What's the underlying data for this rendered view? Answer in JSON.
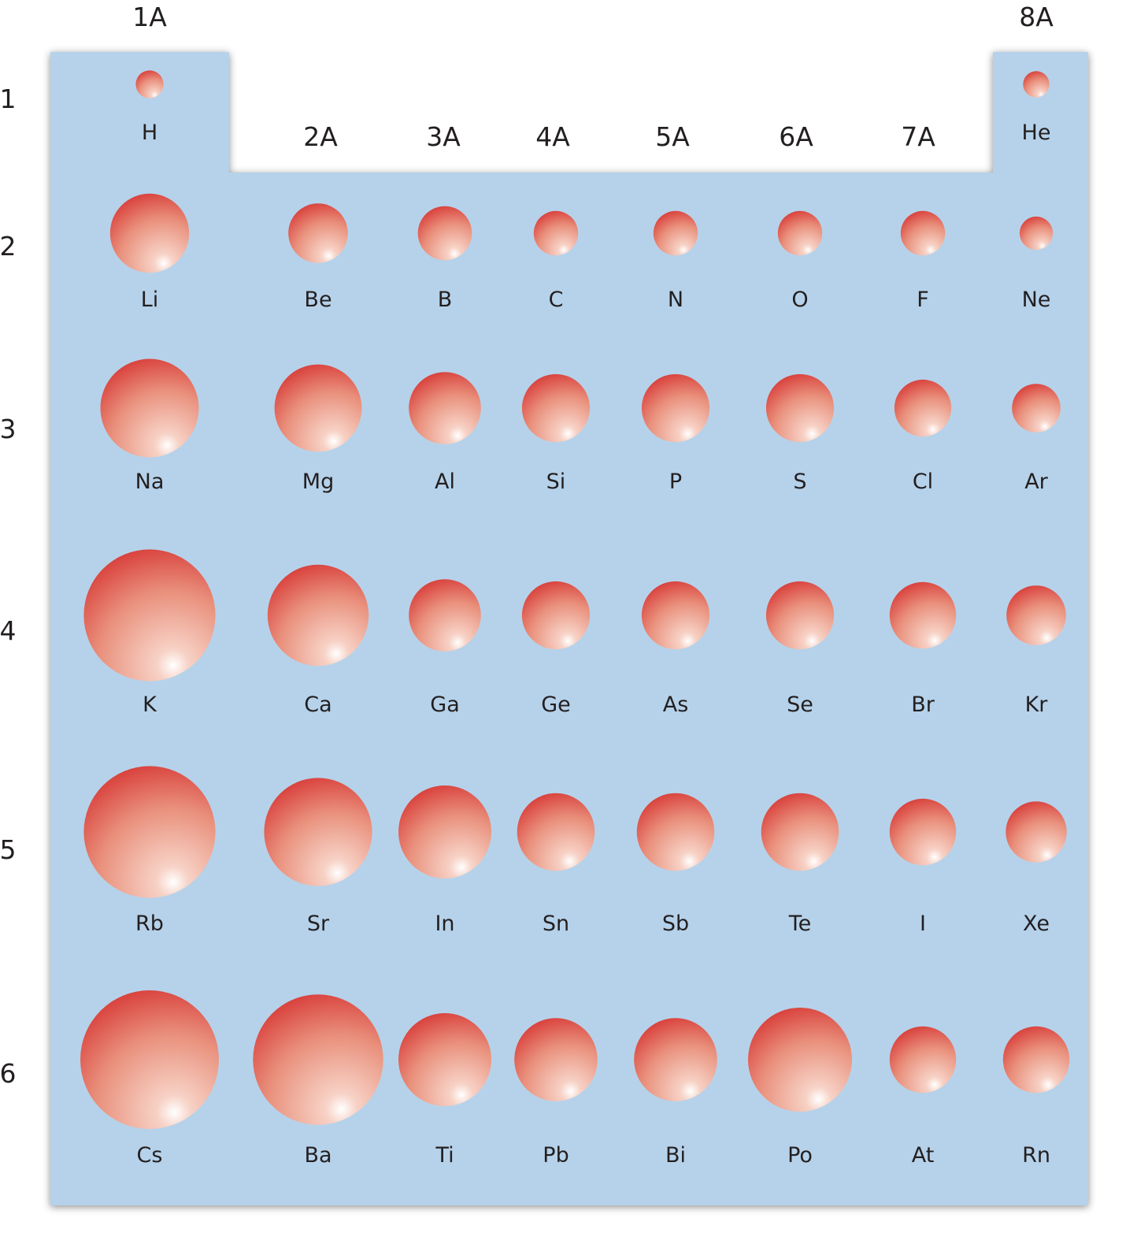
{
  "groups": [
    {
      "label": "1A"
    },
    {
      "label": "2A"
    },
    {
      "label": "3A"
    },
    {
      "label": "4A"
    },
    {
      "label": "5A"
    },
    {
      "label": "6A"
    },
    {
      "label": "7A"
    },
    {
      "label": "8A"
    }
  ],
  "periods": [
    {
      "label": "1"
    },
    {
      "label": "2"
    },
    {
      "label": "3"
    },
    {
      "label": "4"
    },
    {
      "label": "5"
    },
    {
      "label": "6"
    }
  ],
  "elements": [
    {
      "symbol": "H",
      "period": 1,
      "group": 1,
      "relative_size": 0.2
    },
    {
      "symbol": "He",
      "period": 1,
      "group": 8,
      "relative_size": 0.19
    },
    {
      "symbol": "Li",
      "period": 2,
      "group": 1,
      "relative_size": 0.57
    },
    {
      "symbol": "Be",
      "period": 2,
      "group": 2,
      "relative_size": 0.43
    },
    {
      "symbol": "B",
      "period": 2,
      "group": 3,
      "relative_size": 0.39
    },
    {
      "symbol": "C",
      "period": 2,
      "group": 4,
      "relative_size": 0.32
    },
    {
      "symbol": "N",
      "period": 2,
      "group": 5,
      "relative_size": 0.32
    },
    {
      "symbol": "O",
      "period": 2,
      "group": 6,
      "relative_size": 0.32
    },
    {
      "symbol": "F",
      "period": 2,
      "group": 7,
      "relative_size": 0.32
    },
    {
      "symbol": "Ne",
      "period": 2,
      "group": 8,
      "relative_size": 0.24
    },
    {
      "symbol": "Na",
      "period": 3,
      "group": 1,
      "relative_size": 0.71
    },
    {
      "symbol": "Mg",
      "period": 3,
      "group": 2,
      "relative_size": 0.63
    },
    {
      "symbol": "Al",
      "period": 3,
      "group": 3,
      "relative_size": 0.52
    },
    {
      "symbol": "Si",
      "period": 3,
      "group": 4,
      "relative_size": 0.49
    },
    {
      "symbol": "P",
      "period": 3,
      "group": 5,
      "relative_size": 0.49
    },
    {
      "symbol": "S",
      "period": 3,
      "group": 6,
      "relative_size": 0.49
    },
    {
      "symbol": "Cl",
      "period": 3,
      "group": 7,
      "relative_size": 0.41
    },
    {
      "symbol": "Ar",
      "period": 3,
      "group": 8,
      "relative_size": 0.35
    },
    {
      "symbol": "K",
      "period": 4,
      "group": 1,
      "relative_size": 0.95
    },
    {
      "symbol": "Ca",
      "period": 4,
      "group": 2,
      "relative_size": 0.73
    },
    {
      "symbol": "Ga",
      "period": 4,
      "group": 3,
      "relative_size": 0.52
    },
    {
      "symbol": "Ge",
      "period": 4,
      "group": 4,
      "relative_size": 0.49
    },
    {
      "symbol": "As",
      "period": 4,
      "group": 5,
      "relative_size": 0.49
    },
    {
      "symbol": "Se",
      "period": 4,
      "group": 6,
      "relative_size": 0.49
    },
    {
      "symbol": "Br",
      "period": 4,
      "group": 7,
      "relative_size": 0.48
    },
    {
      "symbol": "Kr",
      "period": 4,
      "group": 8,
      "relative_size": 0.43
    },
    {
      "symbol": "Rb",
      "period": 5,
      "group": 1,
      "relative_size": 0.95
    },
    {
      "symbol": "Sr",
      "period": 5,
      "group": 2,
      "relative_size": 0.78
    },
    {
      "symbol": "In",
      "period": 5,
      "group": 3,
      "relative_size": 0.67
    },
    {
      "symbol": "Sn",
      "period": 5,
      "group": 4,
      "relative_size": 0.56
    },
    {
      "symbol": "Sb",
      "period": 5,
      "group": 5,
      "relative_size": 0.56
    },
    {
      "symbol": "Te",
      "period": 5,
      "group": 6,
      "relative_size": 0.56
    },
    {
      "symbol": "I",
      "period": 5,
      "group": 7,
      "relative_size": 0.48
    },
    {
      "symbol": "Xe",
      "period": 5,
      "group": 8,
      "relative_size": 0.44
    },
    {
      "symbol": "Cs",
      "period": 6,
      "group": 1,
      "relative_size": 1.0
    },
    {
      "symbol": "Ba",
      "period": 6,
      "group": 2,
      "relative_size": 0.94
    },
    {
      "symbol": "Ti",
      "period": 6,
      "group": 3,
      "relative_size": 0.67
    },
    {
      "symbol": "Pb",
      "period": 6,
      "group": 4,
      "relative_size": 0.6
    },
    {
      "symbol": "Bi",
      "period": 6,
      "group": 5,
      "relative_size": 0.6
    },
    {
      "symbol": "Po",
      "period": 6,
      "group": 6,
      "relative_size": 0.75
    },
    {
      "symbol": "At",
      "period": 6,
      "group": 7,
      "relative_size": 0.48
    },
    {
      "symbol": "Rn",
      "period": 6,
      "group": 8,
      "relative_size": 0.48
    }
  ],
  "colors": {
    "table_background": "#b6d2ea",
    "sphere_dark": "#d42a2a",
    "sphere_mid": "#e9907c",
    "sphere_highlight": "#ffffff",
    "text": "#231f20"
  }
}
